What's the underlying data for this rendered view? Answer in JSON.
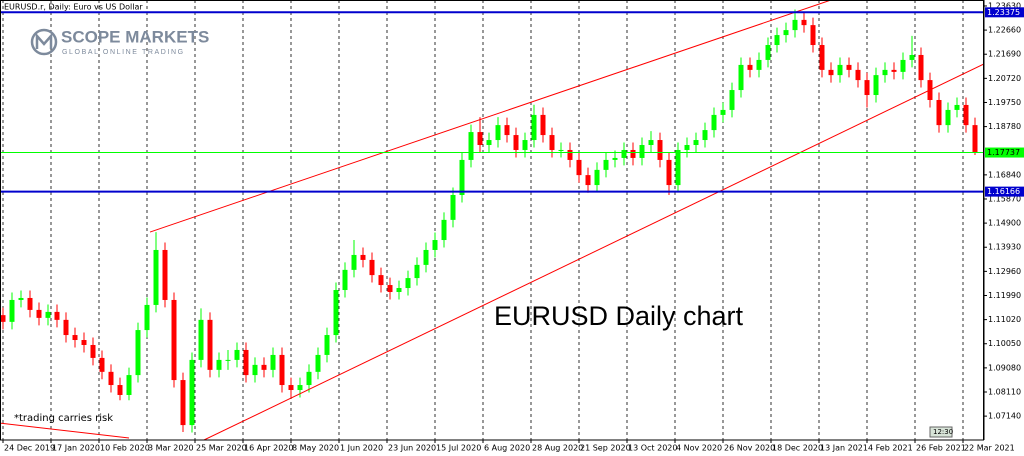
{
  "chart_data": {
    "type": "candlestick",
    "title": "EURUSD.r, Daily:  Euro vs US Dollar",
    "annotation": "EURUSD Daily chart",
    "note": "*trading carries risk",
    "clock": "12:30",
    "up_color": "#00ff00",
    "down_color": "#ff0000",
    "grid": "x",
    "xlim": [
      -1,
      327
    ],
    "ylim": [
      1.0618,
      1.2387
    ],
    "xticks": [
      {
        "value": 0,
        "label": "24 Dec 2019"
      },
      {
        "value": 16,
        "label": "17 Jan 2020"
      },
      {
        "value": 32,
        "label": "10 Feb 2020"
      },
      {
        "value": 48,
        "label": "3 Mar 2020"
      },
      {
        "value": 64,
        "label": "25 Mar 2020"
      },
      {
        "value": 80,
        "label": "16 Apr 2020"
      },
      {
        "value": 96,
        "label": "8 May 2020"
      },
      {
        "value": 112,
        "label": "1 Jun 2020"
      },
      {
        "value": 128,
        "label": "23 Jun 2020"
      },
      {
        "value": 144,
        "label": "15 Jul 2020"
      },
      {
        "value": 160,
        "label": "6 Aug 2020"
      },
      {
        "value": 176,
        "label": "28 Aug 2020"
      },
      {
        "value": 192,
        "label": "21 Sep 2020"
      },
      {
        "value": 208,
        "label": "13 Oct 2020"
      },
      {
        "value": 224,
        "label": "4 Nov 2020"
      },
      {
        "value": 240,
        "label": "26 Nov 2020"
      },
      {
        "value": 256,
        "label": "18 Dec 2020"
      },
      {
        "value": 272,
        "label": "13 Jan 2021"
      },
      {
        "value": 288,
        "label": "4 Feb 2021"
      },
      {
        "value": 304,
        "label": "26 Feb 2021"
      },
      {
        "value": 320,
        "label": "22 Mar 2021"
      }
    ],
    "yticks": [
      {
        "value": 1.2363,
        "label": "1.23630"
      },
      {
        "value": 1.2266,
        "label": "1.22660"
      },
      {
        "value": 1.2169,
        "label": "1.21690"
      },
      {
        "value": 1.2072,
        "label": "1.20720"
      },
      {
        "value": 1.1975,
        "label": "1.19750"
      },
      {
        "value": 1.1878,
        "label": "1.18780"
      },
      {
        "value": 1.1684,
        "label": "1.16840"
      },
      {
        "value": 1.1587,
        "label": "1.15870"
      },
      {
        "value": 1.149,
        "label": "1.14900"
      },
      {
        "value": 1.1393,
        "label": "1.13930"
      },
      {
        "value": 1.1296,
        "label": "1.12960"
      },
      {
        "value": 1.1199,
        "label": "1.11990"
      },
      {
        "value": 1.1102,
        "label": "1.11020"
      },
      {
        "value": 1.1005,
        "label": "1.10050"
      },
      {
        "value": 1.0908,
        "label": "1.09080"
      },
      {
        "value": 1.0811,
        "label": "1.08110"
      },
      {
        "value": 1.0714,
        "label": "1.07140"
      }
    ],
    "levels": [
      {
        "value": 1.23375,
        "color": "#0000cd"
      },
      {
        "value": 1.17737,
        "color": "#00ff00"
      },
      {
        "value": 1.16166,
        "color": "#0000cd"
      }
    ],
    "trendlines": {
      "color": "#ff0000",
      "lines": [
        {
          "x": [
            49,
            276
          ],
          "y": [
            1.1454,
            1.2387
          ]
        },
        {
          "x": [
            67,
            338
          ],
          "y": [
            1.0618,
            1.2194
          ]
        },
        {
          "x": [
            -1,
            42
          ],
          "y": [
            1.0686,
            1.0626
          ]
        }
      ]
    },
    "x": [
      0,
      3,
      6,
      9,
      12,
      15,
      18,
      21,
      24,
      27,
      30,
      33,
      36,
      39,
      42,
      45,
      48,
      51,
      54,
      57,
      60,
      63,
      66,
      69,
      72,
      75,
      78,
      81,
      84,
      87,
      90,
      93,
      96,
      99,
      102,
      105,
      108,
      111,
      114,
      117,
      120,
      123,
      126,
      129,
      132,
      135,
      138,
      141,
      144,
      147,
      150,
      153,
      156,
      159,
      162,
      165,
      168,
      171,
      174,
      177,
      180,
      183,
      186,
      189,
      192,
      195,
      198,
      201,
      204,
      207,
      210,
      213,
      216,
      219,
      222,
      225,
      228,
      231,
      234,
      237,
      240,
      243,
      246,
      249,
      252,
      255,
      258,
      261,
      264,
      267,
      270,
      273,
      276,
      279,
      282,
      285,
      288,
      291,
      294,
      297,
      300,
      303,
      306,
      309,
      312,
      315,
      318,
      321,
      324
    ],
    "open": [
      1.112,
      1.1093,
      1.1181,
      1.1189,
      1.1141,
      1.1109,
      1.1133,
      1.1101,
      1.104,
      1.102,
      1.1,
      1.0948,
      1.0892,
      1.0839,
      1.0799,
      1.0879,
      1.106,
      1.1161,
      1.1382,
      1.1181,
      1.0859,
      1.0678,
      1.094,
      1.1101,
      1.09,
      1.094,
      1.094,
      1.098,
      1.0879,
      1.092,
      1.09,
      1.096,
      1.0839,
      1.0819,
      1.0839,
      1.0892,
      1.096,
      1.104,
      1.1221,
      1.1302,
      1.1362,
      1.1342,
      1.1281,
      1.1241,
      1.1213,
      1.1229,
      1.1269,
      1.1322,
      1.1382,
      1.1422,
      1.1503,
      1.1603,
      1.1744,
      1.1856,
      1.1804,
      1.1824,
      1.1884,
      1.1844,
      1.1784,
      1.1824,
      1.1925,
      1.1844,
      1.1784,
      1.1784,
      1.1744,
      1.1683,
      1.1643,
      1.1704,
      1.1744,
      1.1752,
      1.1784,
      1.1752,
      1.1804,
      1.1824,
      1.1744,
      1.1643,
      1.1784,
      1.1804,
      1.1824,
      1.1864,
      1.1925,
      1.1945,
      1.2025,
      1.2126,
      1.2106,
      1.2146,
      1.2206,
      1.2246,
      1.2266,
      1.2307,
      1.2286,
      1.2206,
      1.2106,
      1.2085,
      1.2126,
      1.2106,
      1.2065,
      1.2005,
      1.2085,
      1.2106,
      1.2098,
      1.2146,
      1.2166,
      1.2065,
      1.1985,
      1.1884,
      1.1945,
      1.1965,
      1.1884
    ],
    "high": [
      1.115,
      1.1211,
      1.1219,
      1.1219,
      1.1171,
      1.1163,
      1.1163,
      1.1131,
      1.107,
      1.105,
      1.103,
      1.0978,
      1.0922,
      1.0869,
      1.0909,
      1.109,
      1.1191,
      1.1454,
      1.1412,
      1.1211,
      1.0889,
      1.097,
      1.1147,
      1.1131,
      1.097,
      1.098,
      1.101,
      1.101,
      1.095,
      1.095,
      1.099,
      1.099,
      1.0869,
      1.0869,
      1.0922,
      1.099,
      1.107,
      1.1251,
      1.1332,
      1.1422,
      1.1392,
      1.1372,
      1.1311,
      1.1271,
      1.1259,
      1.1299,
      1.1352,
      1.1412,
      1.1452,
      1.1533,
      1.1633,
      1.1774,
      1.1886,
      1.1916,
      1.1854,
      1.1916,
      1.1914,
      1.1874,
      1.1854,
      1.1966,
      1.1955,
      1.1874,
      1.1814,
      1.1814,
      1.1774,
      1.1713,
      1.1734,
      1.1774,
      1.1782,
      1.1814,
      1.1814,
      1.1834,
      1.186,
      1.1854,
      1.1774,
      1.1814,
      1.1834,
      1.1854,
      1.1894,
      1.1955,
      1.1975,
      1.2055,
      1.2156,
      1.2156,
      1.2176,
      1.2236,
      1.2276,
      1.2296,
      1.2349,
      1.2337,
      1.2316,
      1.2236,
      1.2136,
      1.2156,
      1.2156,
      1.2136,
      1.2095,
      1.2115,
      1.2136,
      1.2136,
      1.2176,
      1.2243,
      1.2196,
      1.2095,
      1.2015,
      1.1975,
      1.1995,
      1.1995,
      1.1914
    ],
    "low": [
      1.1063,
      1.1063,
      1.1151,
      1.1111,
      1.1079,
      1.1079,
      1.1071,
      1.101,
      1.099,
      1.097,
      1.0918,
      1.0862,
      1.0809,
      1.0778,
      1.0778,
      1.0849,
      1.103,
      1.1131,
      1.1151,
      1.0829,
      1.065,
      1.0648,
      1.091,
      1.087,
      1.087,
      1.09,
      1.091,
      1.0849,
      1.0849,
      1.087,
      1.087,
      1.0809,
      1.0789,
      1.0789,
      1.0809,
      1.0862,
      1.093,
      1.101,
      1.1191,
      1.1272,
      1.1312,
      1.1251,
      1.1211,
      1.1183,
      1.1183,
      1.1199,
      1.1239,
      1.1292,
      1.1352,
      1.1392,
      1.1473,
      1.1573,
      1.1714,
      1.1774,
      1.1774,
      1.1794,
      1.1814,
      1.1754,
      1.1754,
      1.1794,
      1.1814,
      1.1754,
      1.1754,
      1.1714,
      1.1653,
      1.1612,
      1.1613,
      1.1674,
      1.1714,
      1.1722,
      1.1722,
      1.1722,
      1.1774,
      1.1714,
      1.1603,
      1.1613,
      1.1754,
      1.1774,
      1.1794,
      1.1834,
      1.1895,
      1.1915,
      1.1995,
      1.2076,
      1.2076,
      1.2116,
      1.2176,
      1.2216,
      1.2236,
      1.2256,
      1.2176,
      1.2076,
      1.2055,
      1.2055,
      1.2076,
      1.2035,
      1.1955,
      1.1975,
      1.2055,
      1.2068,
      1.2068,
      1.2116,
      1.2035,
      1.1955,
      1.1854,
      1.1854,
      1.1915,
      1.1854,
      1.1764
    ],
    "close": [
      1.1093,
      1.1181,
      1.1189,
      1.1141,
      1.1109,
      1.1133,
      1.1101,
      1.104,
      1.102,
      1.1,
      1.0948,
      1.0892,
      1.0839,
      1.0799,
      1.0879,
      1.106,
      1.1161,
      1.1382,
      1.1181,
      1.0859,
      1.0678,
      1.094,
      1.1101,
      1.09,
      1.094,
      1.094,
      1.098,
      1.0879,
      1.092,
      1.09,
      1.096,
      1.0839,
      1.0819,
      1.0839,
      1.0892,
      1.096,
      1.104,
      1.1221,
      1.1302,
      1.1362,
      1.1342,
      1.1281,
      1.1241,
      1.1213,
      1.1229,
      1.1269,
      1.1322,
      1.1382,
      1.1422,
      1.1503,
      1.1603,
      1.1744,
      1.1856,
      1.1804,
      1.1824,
      1.1884,
      1.1844,
      1.1784,
      1.1824,
      1.1925,
      1.1844,
      1.1784,
      1.1784,
      1.1744,
      1.1683,
      1.1643,
      1.1704,
      1.1744,
      1.1752,
      1.1784,
      1.1752,
      1.1804,
      1.1824,
      1.1744,
      1.1643,
      1.1784,
      1.1804,
      1.1824,
      1.1864,
      1.1925,
      1.1945,
      1.2025,
      1.2126,
      1.2106,
      1.2146,
      1.2206,
      1.2246,
      1.2266,
      1.2307,
      1.2286,
      1.2206,
      1.2106,
      1.2085,
      1.2126,
      1.2106,
      1.2065,
      1.2005,
      1.2085,
      1.2106,
      1.2098,
      1.2146,
      1.2166,
      1.2065,
      1.1985,
      1.1884,
      1.1945,
      1.1965,
      1.1884,
      1.1774
    ]
  },
  "logo": {
    "name": "SCOPE MARKETS",
    "tagline": "GLOBAL ONLINE TRADING"
  }
}
